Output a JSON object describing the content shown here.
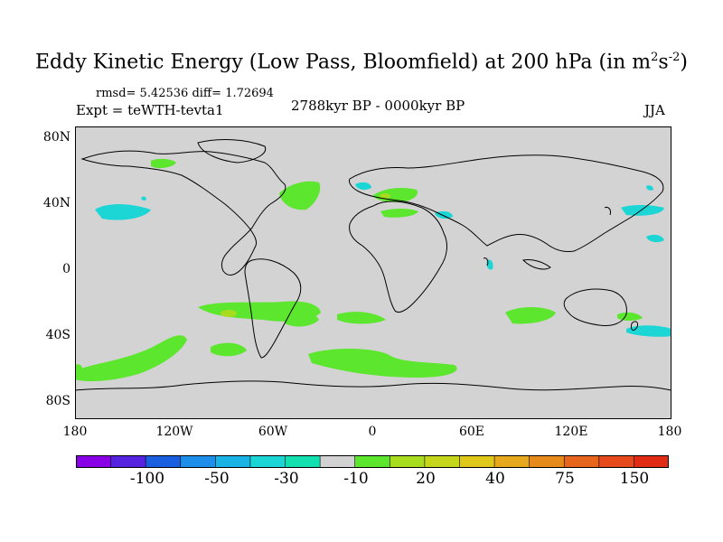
{
  "title": {
    "main": "Eddy Kinetic Energy (Low Pass, Bloomfield) at 200 hPa (in m",
    "sup1": "2",
    "mid": "s",
    "sup2": "-2",
    "end": ")"
  },
  "stats": "rmsd= 5.42536 diff= 1.72694",
  "experiment": "Expt = teWTH-tevta1",
  "period": "2788kyr BP - 0000kyr BP",
  "season": "JJA",
  "y_axis_labels": [
    "80N",
    "40N",
    "0",
    "40S",
    "80S"
  ],
  "x_axis_labels": [
    "180",
    "120W",
    "60W",
    "0",
    "60E",
    "120E",
    "180"
  ],
  "colorbar": {
    "labels": [
      "-100",
      "-50",
      "-30",
      "-10",
      "20",
      "40",
      "75",
      "150"
    ],
    "colors": [
      "#8a00e6",
      "#5522e0",
      "#1a5fe0",
      "#1e8fe8",
      "#19b3e6",
      "#1cd6d6",
      "#12e0b0",
      "#d2d2d2",
      "#5ce62e",
      "#a8dc1e",
      "#c6d61a",
      "#e0c81a",
      "#e6a81c",
      "#e68a1c",
      "#e6661e",
      "#e64a1c",
      "#e02c14"
    ]
  },
  "colors": {
    "land_fill": "#d3d3d3",
    "positive": "#5ce62e",
    "positive_strong": "#a8dc1e",
    "negative": "#1cd6d6"
  }
}
